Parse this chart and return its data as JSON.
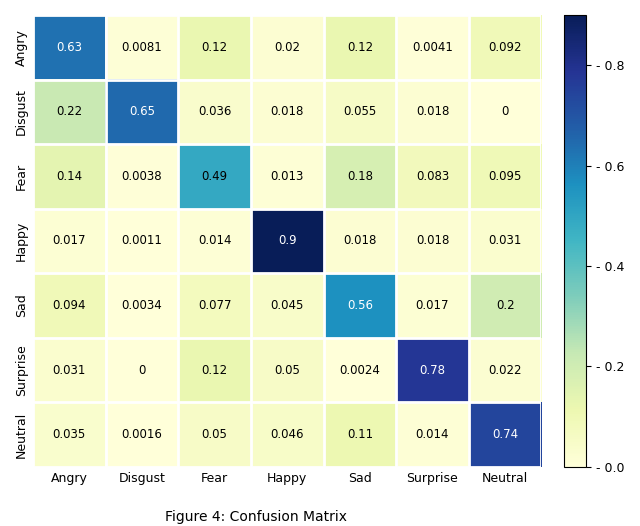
{
  "matrix": [
    [
      0.63,
      0.0081,
      0.12,
      0.02,
      0.12,
      0.0041,
      0.092
    ],
    [
      0.22,
      0.65,
      0.036,
      0.018,
      0.055,
      0.018,
      0
    ],
    [
      0.14,
      0.0038,
      0.49,
      0.013,
      0.18,
      0.083,
      0.095
    ],
    [
      0.017,
      0.0011,
      0.014,
      0.9,
      0.018,
      0.018,
      0.031
    ],
    [
      0.094,
      0.0034,
      0.077,
      0.045,
      0.56,
      0.017,
      0.2
    ],
    [
      0.031,
      0,
      0.12,
      0.05,
      0.0024,
      0.78,
      0.022
    ],
    [
      0.035,
      0.0016,
      0.05,
      0.046,
      0.11,
      0.014,
      0.74
    ]
  ],
  "labels": [
    "Angry",
    "Disgust",
    "Fear",
    "Happy",
    "Sad",
    "Surprise",
    "Neutral"
  ],
  "cmap": "YlGnBu",
  "vmin": 0.0,
  "vmax": 0.9,
  "title": "Figure 4: Confusion Matrix",
  "text_threshold": 0.5,
  "colorbar_ticks": [
    0.0,
    0.2,
    0.4,
    0.6,
    0.8
  ],
  "colorbar_tick_labels": [
    "- 0.0",
    "- 0.2",
    "- 0.4",
    "- 0.6",
    "- 0.8"
  ]
}
